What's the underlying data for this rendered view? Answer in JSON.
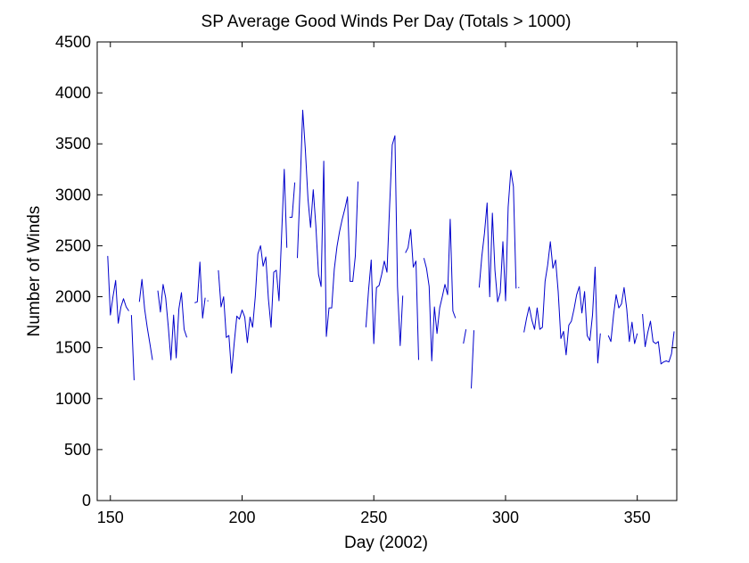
{
  "chart_data": {
    "type": "line",
    "title": "SP Average Good Winds Per Day (Totals > 1000)",
    "xlabel": "Day (2002)",
    "ylabel": "Number of Winds",
    "xlim": [
      145,
      365
    ],
    "ylim": [
      0,
      4500
    ],
    "xticks": [
      150,
      200,
      250,
      300,
      350
    ],
    "yticks": [
      0,
      500,
      1000,
      1500,
      2000,
      2500,
      3000,
      3500,
      4000,
      4500
    ],
    "grid": false,
    "legend": "none",
    "line_color": "#0000cc",
    "series": [
      {
        "segments": [
          [
            [
              149,
              2400
            ],
            [
              150,
              1820
            ],
            [
              151,
              2000
            ],
            [
              152,
              2160
            ],
            [
              153,
              1740
            ],
            [
              154,
              1900
            ],
            [
              155,
              1980
            ],
            [
              156,
              1900
            ],
            [
              157,
              1860
            ]
          ],
          [
            [
              158,
              1820
            ],
            [
              159,
              1180
            ]
          ],
          [
            [
              161,
              1950
            ],
            [
              162,
              2170
            ],
            [
              163,
              1880
            ],
            [
              164,
              1700
            ],
            [
              165,
              1540
            ],
            [
              166,
              1380
            ]
          ],
          [
            [
              168,
              2060
            ],
            [
              169,
              1850
            ],
            [
              170,
              2120
            ],
            [
              171,
              1990
            ],
            [
              172,
              1700
            ],
            [
              173,
              1380
            ],
            [
              174,
              1820
            ],
            [
              175,
              1400
            ],
            [
              176,
              1880
            ],
            [
              177,
              2040
            ],
            [
              178,
              1680
            ],
            [
              179,
              1600
            ]
          ],
          [
            [
              182,
              1940
            ],
            [
              183,
              1950
            ],
            [
              184,
              2340
            ],
            [
              185,
              1790
            ],
            [
              186,
              1990
            ]
          ],
          [
            [
              187,
              1960
            ]
          ],
          [
            [
              191,
              2260
            ],
            [
              192,
              1900
            ],
            [
              193,
              2000
            ],
            [
              194,
              1600
            ],
            [
              195,
              1620
            ],
            [
              196,
              1250
            ],
            [
              197,
              1540
            ],
            [
              198,
              1810
            ],
            [
              199,
              1780
            ],
            [
              200,
              1870
            ],
            [
              201,
              1800
            ],
            [
              202,
              1550
            ],
            [
              203,
              1800
            ],
            [
              204,
              1700
            ],
            [
              205,
              2000
            ],
            [
              206,
              2420
            ],
            [
              207,
              2500
            ],
            [
              208,
              2300
            ],
            [
              209,
              2390
            ],
            [
              210,
              1980
            ],
            [
              211,
              1700
            ],
            [
              212,
              2240
            ],
            [
              213,
              2260
            ],
            [
              214,
              1960
            ],
            [
              215,
              2600
            ],
            [
              216,
              3250
            ],
            [
              217,
              2480
            ]
          ],
          [
            [
              218,
              2780
            ],
            [
              219,
              2780
            ],
            [
              220,
              3120
            ]
          ],
          [
            [
              221,
              2380
            ],
            [
              222,
              3060
            ],
            [
              223,
              3830
            ],
            [
              224,
              3450
            ],
            [
              225,
              2960
            ],
            [
              226,
              2680
            ],
            [
              227,
              3050
            ],
            [
              228,
              2700
            ],
            [
              229,
              2220
            ],
            [
              230,
              2100
            ],
            [
              231,
              3330
            ],
            [
              232,
              1610
            ],
            [
              233,
              1890
            ],
            [
              234,
              1890
            ],
            [
              235,
              2270
            ],
            [
              236,
              2490
            ],
            [
              237,
              2640
            ],
            [
              238,
              2760
            ],
            [
              239,
              2860
            ],
            [
              240,
              2980
            ],
            [
              241,
              2150
            ],
            [
              242,
              2150
            ],
            [
              243,
              2400
            ],
            [
              244,
              3130
            ]
          ],
          [
            [
              247,
              1700
            ],
            [
              248,
              2060
            ],
            [
              249,
              2360
            ],
            [
              250,
              1540
            ],
            [
              251,
              2090
            ],
            [
              252,
              2110
            ],
            [
              253,
              2220
            ],
            [
              254,
              2350
            ],
            [
              255,
              2240
            ],
            [
              256,
              2900
            ],
            [
              257,
              3490
            ],
            [
              258,
              3580
            ],
            [
              259,
              2100
            ],
            [
              260,
              1520
            ],
            [
              261,
              2010
            ]
          ],
          [
            [
              262,
              2430
            ],
            [
              263,
              2480
            ],
            [
              264,
              2660
            ],
            [
              265,
              2290
            ],
            [
              266,
              2350
            ],
            [
              267,
              1380
            ]
          ],
          [
            [
              269,
              2380
            ],
            [
              270,
              2280
            ],
            [
              271,
              2100
            ],
            [
              272,
              1370
            ],
            [
              273,
              1900
            ],
            [
              274,
              1640
            ],
            [
              275,
              1890
            ],
            [
              276,
              2000
            ],
            [
              277,
              2120
            ],
            [
              278,
              2020
            ],
            [
              279,
              2760
            ],
            [
              280,
              1860
            ],
            [
              281,
              1790
            ]
          ],
          [
            [
              284,
              1540
            ],
            [
              285,
              1680
            ]
          ],
          [
            [
              287,
              1100
            ],
            [
              288,
              1670
            ]
          ],
          [
            [
              290,
              2090
            ],
            [
              291,
              2400
            ],
            [
              292,
              2620
            ],
            [
              293,
              2920
            ],
            [
              294,
              2000
            ],
            [
              295,
              2820
            ],
            [
              296,
              2260
            ],
            [
              297,
              1950
            ],
            [
              298,
              2040
            ],
            [
              299,
              2540
            ],
            [
              300,
              1960
            ],
            [
              301,
              2880
            ],
            [
              302,
              3240
            ],
            [
              303,
              3080
            ],
            [
              304,
              2080
            ]
          ],
          [
            [
              305,
              2090
            ]
          ],
          [
            [
              307,
              1650
            ],
            [
              308,
              1790
            ],
            [
              309,
              1900
            ],
            [
              310,
              1770
            ],
            [
              311,
              1680
            ],
            [
              312,
              1890
            ],
            [
              313,
              1680
            ],
            [
              314,
              1700
            ],
            [
              315,
              2150
            ],
            [
              316,
              2310
            ],
            [
              317,
              2540
            ],
            [
              318,
              2280
            ],
            [
              319,
              2360
            ],
            [
              320,
              2050
            ],
            [
              321,
              1590
            ],
            [
              322,
              1660
            ],
            [
              323,
              1430
            ],
            [
              324,
              1720
            ],
            [
              325,
              1760
            ],
            [
              326,
              1880
            ],
            [
              327,
              2020
            ],
            [
              328,
              2100
            ],
            [
              329,
              1840
            ],
            [
              330,
              2050
            ],
            [
              331,
              1620
            ],
            [
              332,
              1570
            ],
            [
              333,
              1820
            ],
            [
              334,
              2290
            ],
            [
              335,
              1350
            ],
            [
              336,
              1640
            ]
          ],
          [
            [
              339,
              1620
            ],
            [
              340,
              1560
            ],
            [
              341,
              1820
            ],
            [
              342,
              2020
            ],
            [
              343,
              1890
            ],
            [
              344,
              1930
            ],
            [
              345,
              2090
            ],
            [
              346,
              1880
            ],
            [
              347,
              1560
            ],
            [
              348,
              1750
            ],
            [
              349,
              1540
            ],
            [
              350,
              1640
            ]
          ],
          [
            [
              352,
              1830
            ],
            [
              353,
              1510
            ],
            [
              354,
              1650
            ],
            [
              355,
              1760
            ],
            [
              356,
              1560
            ],
            [
              357,
              1540
            ],
            [
              358,
              1560
            ],
            [
              359,
              1340
            ],
            [
              360,
              1360
            ],
            [
              361,
              1370
            ],
            [
              362,
              1360
            ],
            [
              363,
              1440
            ],
            [
              364,
              1660
            ]
          ]
        ]
      }
    ]
  }
}
